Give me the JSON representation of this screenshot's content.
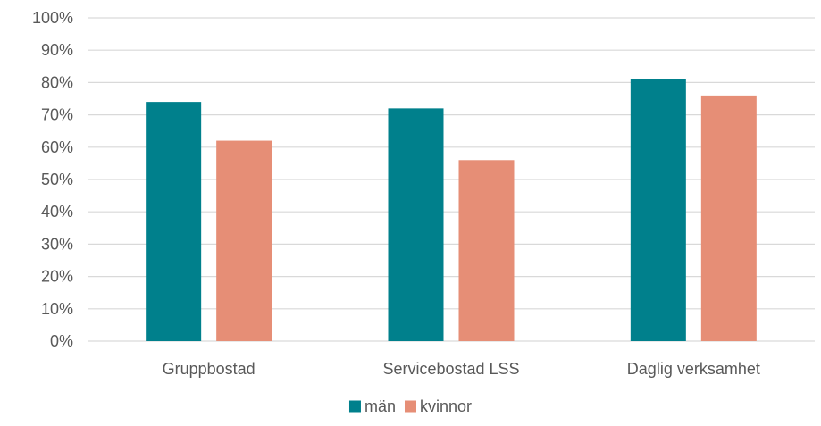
{
  "chart_data": {
    "type": "bar",
    "categories": [
      "Gruppbostad",
      "Servicebostad LSS",
      "Daglig verksamhet"
    ],
    "series": [
      {
        "name": "män",
        "values": [
          74,
          72,
          81
        ],
        "color": "#00808C"
      },
      {
        "name": "kvinnor",
        "values": [
          62,
          56,
          76
        ],
        "color": "#E68E76"
      }
    ],
    "ylim": [
      0,
      100
    ],
    "yticks": [
      "0%",
      "10%",
      "20%",
      "30%",
      "40%",
      "50%",
      "60%",
      "70%",
      "80%",
      "90%",
      "100%"
    ],
    "grid": true,
    "legend_position": "bottom",
    "gridline_color": "#d9d9d9",
    "text_color": "#595959"
  }
}
